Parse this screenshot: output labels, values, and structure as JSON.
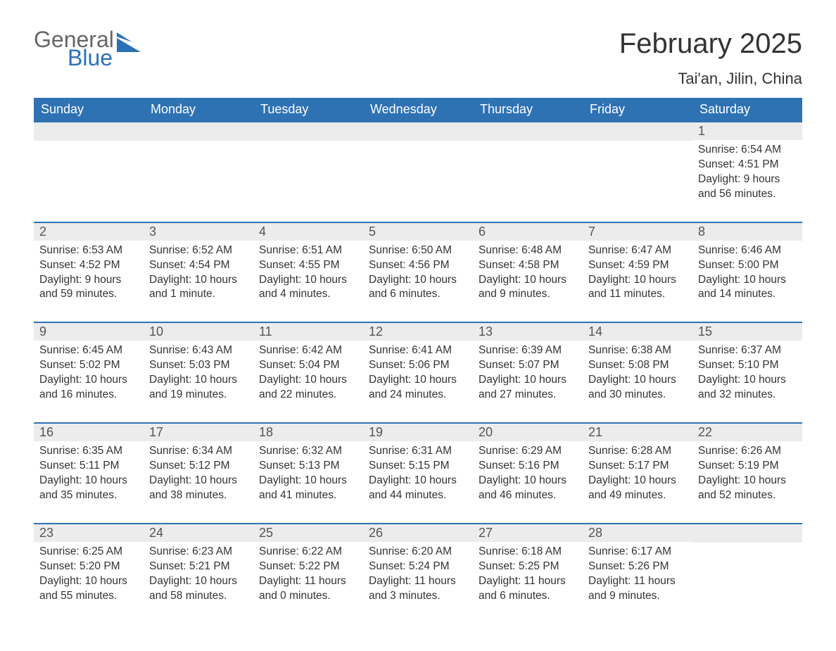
{
  "logo": {
    "text1": "General",
    "text2": "Blue"
  },
  "title": "February 2025",
  "location": "Tai'an, Jilin, China",
  "colors": {
    "header_bg": "#2f72b4",
    "header_text": "#ffffff",
    "daynum_bg": "#ececec",
    "border": "#2f72b4",
    "logo_gray": "#666666",
    "logo_blue": "#2a71b8",
    "body_text": "#333333",
    "page_bg": "#ffffff"
  },
  "weekdays": [
    "Sunday",
    "Monday",
    "Tuesday",
    "Wednesday",
    "Thursday",
    "Friday",
    "Saturday"
  ],
  "weeks": [
    [
      null,
      null,
      null,
      null,
      null,
      null,
      {
        "d": "1",
        "sr": "Sunrise: 6:54 AM",
        "ss": "Sunset: 4:51 PM",
        "dl": "Daylight: 9 hours and 56 minutes."
      }
    ],
    [
      {
        "d": "2",
        "sr": "Sunrise: 6:53 AM",
        "ss": "Sunset: 4:52 PM",
        "dl": "Daylight: 9 hours and 59 minutes."
      },
      {
        "d": "3",
        "sr": "Sunrise: 6:52 AM",
        "ss": "Sunset: 4:54 PM",
        "dl": "Daylight: 10 hours and 1 minute."
      },
      {
        "d": "4",
        "sr": "Sunrise: 6:51 AM",
        "ss": "Sunset: 4:55 PM",
        "dl": "Daylight: 10 hours and 4 minutes."
      },
      {
        "d": "5",
        "sr": "Sunrise: 6:50 AM",
        "ss": "Sunset: 4:56 PM",
        "dl": "Daylight: 10 hours and 6 minutes."
      },
      {
        "d": "6",
        "sr": "Sunrise: 6:48 AM",
        "ss": "Sunset: 4:58 PM",
        "dl": "Daylight: 10 hours and 9 minutes."
      },
      {
        "d": "7",
        "sr": "Sunrise: 6:47 AM",
        "ss": "Sunset: 4:59 PM",
        "dl": "Daylight: 10 hours and 11 minutes."
      },
      {
        "d": "8",
        "sr": "Sunrise: 6:46 AM",
        "ss": "Sunset: 5:00 PM",
        "dl": "Daylight: 10 hours and 14 minutes."
      }
    ],
    [
      {
        "d": "9",
        "sr": "Sunrise: 6:45 AM",
        "ss": "Sunset: 5:02 PM",
        "dl": "Daylight: 10 hours and 16 minutes."
      },
      {
        "d": "10",
        "sr": "Sunrise: 6:43 AM",
        "ss": "Sunset: 5:03 PM",
        "dl": "Daylight: 10 hours and 19 minutes."
      },
      {
        "d": "11",
        "sr": "Sunrise: 6:42 AM",
        "ss": "Sunset: 5:04 PM",
        "dl": "Daylight: 10 hours and 22 minutes."
      },
      {
        "d": "12",
        "sr": "Sunrise: 6:41 AM",
        "ss": "Sunset: 5:06 PM",
        "dl": "Daylight: 10 hours and 24 minutes."
      },
      {
        "d": "13",
        "sr": "Sunrise: 6:39 AM",
        "ss": "Sunset: 5:07 PM",
        "dl": "Daylight: 10 hours and 27 minutes."
      },
      {
        "d": "14",
        "sr": "Sunrise: 6:38 AM",
        "ss": "Sunset: 5:08 PM",
        "dl": "Daylight: 10 hours and 30 minutes."
      },
      {
        "d": "15",
        "sr": "Sunrise: 6:37 AM",
        "ss": "Sunset: 5:10 PM",
        "dl": "Daylight: 10 hours and 32 minutes."
      }
    ],
    [
      {
        "d": "16",
        "sr": "Sunrise: 6:35 AM",
        "ss": "Sunset: 5:11 PM",
        "dl": "Daylight: 10 hours and 35 minutes."
      },
      {
        "d": "17",
        "sr": "Sunrise: 6:34 AM",
        "ss": "Sunset: 5:12 PM",
        "dl": "Daylight: 10 hours and 38 minutes."
      },
      {
        "d": "18",
        "sr": "Sunrise: 6:32 AM",
        "ss": "Sunset: 5:13 PM",
        "dl": "Daylight: 10 hours and 41 minutes."
      },
      {
        "d": "19",
        "sr": "Sunrise: 6:31 AM",
        "ss": "Sunset: 5:15 PM",
        "dl": "Daylight: 10 hours and 44 minutes."
      },
      {
        "d": "20",
        "sr": "Sunrise: 6:29 AM",
        "ss": "Sunset: 5:16 PM",
        "dl": "Daylight: 10 hours and 46 minutes."
      },
      {
        "d": "21",
        "sr": "Sunrise: 6:28 AM",
        "ss": "Sunset: 5:17 PM",
        "dl": "Daylight: 10 hours and 49 minutes."
      },
      {
        "d": "22",
        "sr": "Sunrise: 6:26 AM",
        "ss": "Sunset: 5:19 PM",
        "dl": "Daylight: 10 hours and 52 minutes."
      }
    ],
    [
      {
        "d": "23",
        "sr": "Sunrise: 6:25 AM",
        "ss": "Sunset: 5:20 PM",
        "dl": "Daylight: 10 hours and 55 minutes."
      },
      {
        "d": "24",
        "sr": "Sunrise: 6:23 AM",
        "ss": "Sunset: 5:21 PM",
        "dl": "Daylight: 10 hours and 58 minutes."
      },
      {
        "d": "25",
        "sr": "Sunrise: 6:22 AM",
        "ss": "Sunset: 5:22 PM",
        "dl": "Daylight: 11 hours and 0 minutes."
      },
      {
        "d": "26",
        "sr": "Sunrise: 6:20 AM",
        "ss": "Sunset: 5:24 PM",
        "dl": "Daylight: 11 hours and 3 minutes."
      },
      {
        "d": "27",
        "sr": "Sunrise: 6:18 AM",
        "ss": "Sunset: 5:25 PM",
        "dl": "Daylight: 11 hours and 6 minutes."
      },
      {
        "d": "28",
        "sr": "Sunrise: 6:17 AM",
        "ss": "Sunset: 5:26 PM",
        "dl": "Daylight: 11 hours and 9 minutes."
      },
      null
    ]
  ]
}
